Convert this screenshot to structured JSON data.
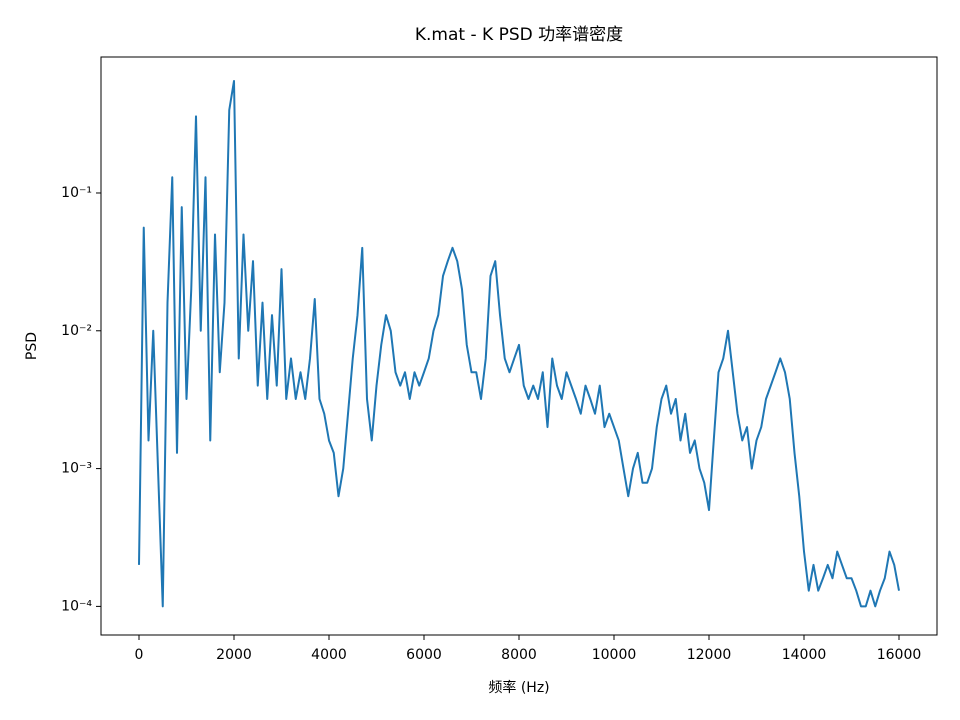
{
  "chart_data": {
    "type": "line",
    "title": "K.mat - K PSD 功率谱密度",
    "xlabel": "频率 (Hz)",
    "ylabel": "PSD",
    "yscale": "log",
    "xlim": [
      -800,
      16800
    ],
    "ylim": [
      6.2e-05,
      0.97
    ],
    "xticks": [
      0,
      2000,
      4000,
      6000,
      8000,
      10000,
      12000,
      14000,
      16000
    ],
    "yticks": [
      {
        "value": 0.1,
        "label": "10⁻¹"
      },
      {
        "value": 0.01,
        "label": "10⁻²"
      },
      {
        "value": 0.001,
        "label": "10⁻³"
      },
      {
        "value": 0.0001,
        "label": "10⁻⁴"
      }
    ],
    "x": [
      0,
      100,
      200,
      300,
      400,
      500,
      600,
      700,
      800,
      900,
      1000,
      1100,
      1200,
      1300,
      1400,
      1500,
      1600,
      1700,
      1800,
      1900,
      2000,
      2100,
      2200,
      2300,
      2400,
      2500,
      2600,
      2700,
      2800,
      2900,
      3000,
      3100,
      3200,
      3300,
      3400,
      3500,
      3600,
      3700,
      3800,
      3900,
      4000,
      4100,
      4200,
      4300,
      4400,
      4500,
      4600,
      4700,
      4800,
      4900,
      5000,
      5100,
      5200,
      5300,
      5400,
      5500,
      5600,
      5700,
      5800,
      5900,
      6000,
      6100,
      6200,
      6300,
      6400,
      6500,
      6600,
      6700,
      6800,
      6900,
      7000,
      7100,
      7200,
      7300,
      7400,
      7500,
      7600,
      7700,
      7800,
      7900,
      8000,
      8100,
      8200,
      8300,
      8400,
      8500,
      8600,
      8700,
      8800,
      8900,
      9000,
      9100,
      9200,
      9300,
      9400,
      9500,
      9600,
      9700,
      9800,
      9900,
      10000,
      10100,
      10200,
      10300,
      10400,
      10500,
      10600,
      10700,
      10800,
      10900,
      11000,
      11100,
      11200,
      11300,
      11400,
      11500,
      11600,
      11700,
      11800,
      11900,
      12000,
      12100,
      12200,
      12300,
      12400,
      12500,
      12600,
      12700,
      12800,
      12900,
      13000,
      13100,
      13200,
      13300,
      13400,
      13500,
      13600,
      13700,
      13800,
      13900,
      14000,
      14100,
      14200,
      14300,
      14400,
      14500,
      14600,
      14700,
      14800,
      14900,
      15000,
      15100,
      15200,
      15300,
      15400,
      15500,
      15600,
      15700,
      15800,
      15900,
      16000
    ],
    "series": [
      {
        "color": "#1f77b4",
        "values": [
          0.0002,
          0.056,
          0.0016,
          0.01,
          0.001,
          0.0001,
          0.016,
          0.13,
          0.0013,
          0.079,
          0.0032,
          0.02,
          0.36,
          0.01,
          0.13,
          0.0016,
          0.05,
          0.005,
          0.016,
          0.4,
          0.65,
          0.0063,
          0.05,
          0.01,
          0.032,
          0.004,
          0.016,
          0.0032,
          0.013,
          0.004,
          0.028,
          0.0032,
          0.0063,
          0.0032,
          0.005,
          0.0032,
          0.0063,
          0.017,
          0.0032,
          0.0025,
          0.0016,
          0.0013,
          0.00063,
          0.001,
          0.0025,
          0.0063,
          0.013,
          0.04,
          0.0032,
          0.0016,
          0.004,
          0.0079,
          0.013,
          0.01,
          0.005,
          0.004,
          0.005,
          0.0032,
          0.005,
          0.004,
          0.005,
          0.0063,
          0.01,
          0.013,
          0.025,
          0.032,
          0.04,
          0.032,
          0.02,
          0.0079,
          0.005,
          0.005,
          0.0032,
          0.0063,
          0.025,
          0.032,
          0.013,
          0.0063,
          0.005,
          0.0063,
          0.0079,
          0.004,
          0.0032,
          0.004,
          0.0032,
          0.005,
          0.002,
          0.0063,
          0.004,
          0.0032,
          0.005,
          0.004,
          0.0032,
          0.0025,
          0.004,
          0.0032,
          0.0025,
          0.004,
          0.002,
          0.0025,
          0.002,
          0.0016,
          0.001,
          0.00063,
          0.001,
          0.0013,
          0.00079,
          0.00079,
          0.001,
          0.002,
          0.0032,
          0.004,
          0.0025,
          0.0032,
          0.0016,
          0.0025,
          0.0013,
          0.0016,
          0.001,
          0.00079,
          0.0005,
          0.0016,
          0.005,
          0.0063,
          0.01,
          0.005,
          0.0025,
          0.0016,
          0.002,
          0.001,
          0.0016,
          0.002,
          0.0032,
          0.004,
          0.005,
          0.0063,
          0.005,
          0.0032,
          0.0013,
          0.00063,
          0.00025,
          0.00013,
          0.0002,
          0.00013,
          0.00016,
          0.0002,
          0.00016,
          0.00025,
          0.0002,
          0.00016,
          0.00016,
          0.00013,
          0.0001,
          0.0001,
          0.00013,
          0.0001,
          0.00013,
          0.00016,
          0.00025,
          0.0002,
          0.00013
        ]
      }
    ]
  }
}
